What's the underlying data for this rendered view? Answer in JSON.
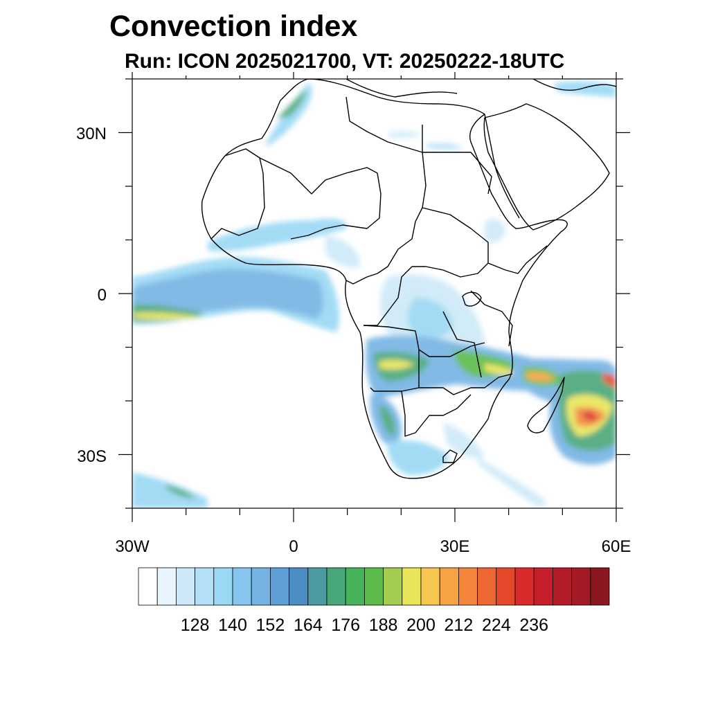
{
  "title": "Convection index",
  "subtitle": "Run: ICON 2025021700,  VT: 20250222-18UTC",
  "map": {
    "lon_range": [
      -30,
      60
    ],
    "lat_range": [
      -40,
      40
    ],
    "lon_tick_labels": [
      "30W",
      "0",
      "30E",
      "60E"
    ],
    "lat_tick_labels": [
      "30N",
      "0",
      "30S"
    ]
  },
  "colorbar": {
    "labels": [
      "128",
      "140",
      "152",
      "164",
      "176",
      "188",
      "200",
      "212",
      "224",
      "236"
    ],
    "colors": [
      "#ffffff",
      "#e8f5fc",
      "#cde9f8",
      "#b3e0f6",
      "#9ad8f4",
      "#86c6ee",
      "#74b3e3",
      "#5d9fd6",
      "#4b8dc5",
      "#4a9aa0",
      "#48a778",
      "#46b35c",
      "#5cbb4a",
      "#a4cd4f",
      "#e9e55a",
      "#f6c64f",
      "#f6a443",
      "#f2853a",
      "#ed6732",
      "#e5492c",
      "#d92b2b",
      "#c51f2c",
      "#b41c2a",
      "#a11a26",
      "#8c1620"
    ]
  },
  "colors": {
    "land_boundary": "#000000",
    "frame": "#000000"
  }
}
